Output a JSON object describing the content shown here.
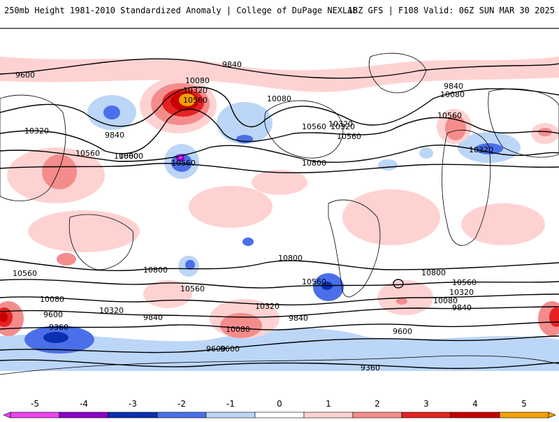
{
  "header": {
    "title_left": "250mb Height 1981-2010 Standardized Anomaly | College of DuPage NEXLAB",
    "title_right": "18Z GFS | F108 Valid: 06Z SUN MAR 30 2025"
  },
  "colorbar": {
    "ticks": [
      "-5",
      "-4",
      "-3",
      "-2",
      "-1",
      "0",
      "1",
      "2",
      "3",
      "4",
      "5"
    ],
    "colors": [
      "#ee44ee",
      "#8a00c8",
      "#0a2fb0",
      "#4a6fe8",
      "#bcd6f8",
      "#ffffff",
      "#ffd2d2",
      "#f58c8c",
      "#e62222",
      "#c80000",
      "#f5a000"
    ]
  },
  "map": {
    "contour_labels": [
      "9600",
      "9840",
      "10080",
      "10320",
      "10560",
      "10800",
      "10320",
      "9840",
      "10800",
      "10560",
      "10320",
      "10560",
      "10080",
      "9840",
      "10560",
      "10080",
      "10560",
      "10320",
      "10800",
      "10560",
      "10800",
      "10800",
      "10560",
      "10320",
      "10080",
      "9840",
      "9600",
      "10560",
      "10080",
      "10320",
      "9600",
      "9360",
      "10080",
      "9840",
      "9840",
      "9600",
      "9360",
      "10800",
      "10560",
      "10320",
      "10560",
      "10320",
      "9600"
    ]
  }
}
